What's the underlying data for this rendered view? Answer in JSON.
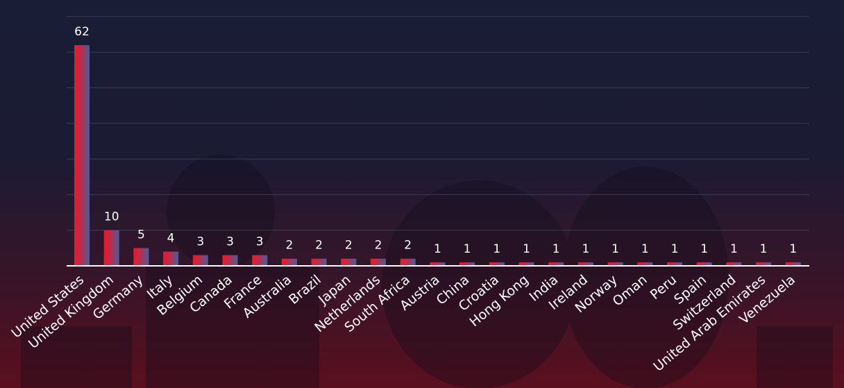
{
  "chart_data": {
    "type": "bar",
    "title": "",
    "xlabel": "",
    "ylabel": "",
    "ylim": [
      0,
      62
    ],
    "grid": true,
    "legend": "none",
    "colors": {
      "bar_start": "#ff1020",
      "bar_end": "#4a5c98",
      "grid": "#3a3c55",
      "axis": "#ffffff",
      "text": "#ffffff"
    },
    "categories": [
      "United States",
      "United Kingdom",
      "Germany",
      "Italy",
      "Belgium",
      "Canada",
      "France",
      "Australia",
      "Brazil",
      "Japan",
      "Netherlands",
      "South Africa",
      "Austria",
      "China",
      "Croatia",
      "Hong Kong",
      "India",
      "Ireland",
      "Norway",
      "Oman",
      "Peru",
      "Spain",
      "Switzerland",
      "United Arab Emirates",
      "Venezuela"
    ],
    "values": [
      62,
      10,
      5,
      4,
      3,
      3,
      3,
      2,
      2,
      2,
      2,
      2,
      1,
      1,
      1,
      1,
      1,
      1,
      1,
      1,
      1,
      1,
      1,
      1,
      1
    ]
  }
}
